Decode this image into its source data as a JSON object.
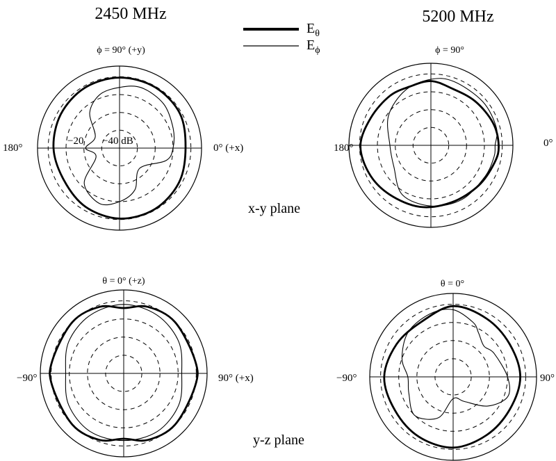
{
  "chart_data": [
    {
      "type": "polar",
      "frequency": "2450 MHz",
      "plane": "x-y plane",
      "top_label": "ϕ = 90° (+y)",
      "left_label": "180°",
      "right_label": "0° (+x)",
      "ring_labels": [
        "−20",
        "−40 dB"
      ],
      "rings_db": [
        0,
        -10,
        -20,
        -30,
        -40
      ],
      "angle_zero": "right",
      "angle_unit": "deg",
      "series": [
        {
          "name": "Eθ",
          "style": "thick",
          "points": [
            [
              0,
              -3
            ],
            [
              30,
              -1
            ],
            [
              60,
              -0.5
            ],
            [
              90,
              -0.5
            ],
            [
              120,
              -1
            ],
            [
              150,
              -2
            ],
            [
              180,
              -3
            ],
            [
              210,
              -4
            ],
            [
              240,
              -2
            ],
            [
              270,
              -0.5
            ],
            [
              300,
              -0.5
            ],
            [
              330,
              -1.5
            ]
          ]
        },
        {
          "name": "Eϕ",
          "style": "thin",
          "points": [
            [
              0,
              -10
            ],
            [
              20,
              -8
            ],
            [
              45,
              -5
            ],
            [
              70,
              -4
            ],
            [
              90,
              -6
            ],
            [
              110,
              -8
            ],
            [
              130,
              -14
            ],
            [
              155,
              -25
            ],
            [
              180,
              -21
            ],
            [
              200,
              -26
            ],
            [
              225,
              -12
            ],
            [
              250,
              -7
            ],
            [
              270,
              -10
            ],
            [
              290,
              -15
            ],
            [
              315,
              -24
            ],
            [
              345,
              -13
            ]
          ]
        }
      ]
    },
    {
      "type": "polar",
      "frequency": "5200 MHz",
      "plane": "",
      "top_label": "ϕ = 90°",
      "left_label": "180°",
      "right_label": "0°",
      "rings_db": [
        0,
        -10,
        -20,
        -30,
        -40
      ],
      "angle_zero": "right",
      "angle_unit": "deg",
      "series": [
        {
          "name": "Eθ",
          "style": "thick",
          "points": [
            [
              0,
              -2
            ],
            [
              20,
              -3
            ],
            [
              45,
              -5
            ],
            [
              70,
              -6
            ],
            [
              90,
              -4
            ],
            [
              110,
              -5
            ],
            [
              130,
              -4
            ],
            [
              155,
              -3
            ],
            [
              180,
              -0.5
            ],
            [
              205,
              -2
            ],
            [
              230,
              -4
            ],
            [
              260,
              -5
            ],
            [
              290,
              -6
            ],
            [
              320,
              -5
            ],
            [
              345,
              -3
            ]
          ]
        },
        {
          "name": "Eϕ",
          "style": "thin",
          "points": [
            [
              0,
              -4
            ],
            [
              15,
              -2
            ],
            [
              40,
              -2
            ],
            [
              70,
              -2
            ],
            [
              90,
              -3
            ],
            [
              115,
              -6
            ],
            [
              145,
              -11
            ],
            [
              180,
              -17
            ],
            [
              210,
              -16
            ],
            [
              240,
              -8
            ],
            [
              270,
              -6
            ],
            [
              300,
              -5
            ],
            [
              330,
              -5
            ],
            [
              350,
              -4
            ]
          ]
        }
      ]
    },
    {
      "type": "polar",
      "frequency": "",
      "plane": "y-z plane",
      "top_label": "θ = 0° (+z)",
      "left_label": "−90°",
      "right_label": "90° (+x)",
      "rings_db": [
        0,
        -10,
        -20,
        -30,
        -40
      ],
      "angle_zero": "top",
      "angle_unit": "deg",
      "series": [
        {
          "name": "Eθ",
          "style": "thick",
          "points": [
            [
              0,
              -4
            ],
            [
              20,
              -1
            ],
            [
              45,
              0
            ],
            [
              80,
              0
            ],
            [
              100,
              0
            ],
            [
              135,
              0
            ],
            [
              160,
              -1
            ],
            [
              180,
              -4
            ],
            [
              200,
              -1
            ],
            [
              225,
              0
            ],
            [
              260,
              0
            ],
            [
              280,
              0
            ],
            [
              315,
              0
            ],
            [
              340,
              -1
            ]
          ]
        },
        {
          "name": "Eϕ",
          "style": "thin",
          "points": [
            [
              0,
              -2
            ],
            [
              30,
              -3
            ],
            [
              60,
              -5
            ],
            [
              90,
              -8
            ],
            [
              120,
              -5
            ],
            [
              150,
              -3
            ],
            [
              180,
              -3
            ],
            [
              210,
              -3
            ],
            [
              240,
              -5
            ],
            [
              270,
              -8
            ],
            [
              300,
              -5
            ],
            [
              330,
              -3
            ]
          ]
        }
      ]
    },
    {
      "type": "polar",
      "frequency": "",
      "plane": "",
      "top_label": "θ = 0°",
      "left_label": "−90°",
      "right_label": "90°",
      "rings_db": [
        0,
        -10,
        -20,
        -30,
        -40
      ],
      "angle_zero": "top",
      "angle_unit": "deg",
      "series": [
        {
          "name": "Eθ",
          "style": "thick",
          "points": [
            [
              0,
              -1
            ],
            [
              30,
              -3
            ],
            [
              60,
              -4
            ],
            [
              90,
              -3
            ],
            [
              120,
              -4
            ],
            [
              150,
              -3
            ],
            [
              180,
              -1
            ],
            [
              210,
              -2
            ],
            [
              240,
              -3
            ],
            [
              270,
              -2
            ],
            [
              300,
              -4
            ],
            [
              330,
              -5
            ]
          ]
        },
        {
          "name": "Eϕ",
          "style": "thin",
          "points": [
            [
              0,
              -3
            ],
            [
              20,
              -8
            ],
            [
              30,
              -12
            ],
            [
              45,
              -16
            ],
            [
              60,
              -14
            ],
            [
              90,
              -10
            ],
            [
              110,
              -8
            ],
            [
              130,
              -15
            ],
            [
              155,
              -25
            ],
            [
              180,
              -28
            ],
            [
              200,
              -16
            ],
            [
              225,
              -10
            ],
            [
              250,
              -14
            ],
            [
              270,
              -15
            ],
            [
              290,
              -10
            ],
            [
              315,
              -5
            ],
            [
              340,
              -3
            ]
          ]
        }
      ]
    }
  ],
  "legend": {
    "thick_label": "Eθ",
    "thin_label": "Eϕ",
    "thick_main": "E",
    "thick_sub": "θ",
    "thin_main": "E",
    "thin_sub": "ϕ"
  }
}
